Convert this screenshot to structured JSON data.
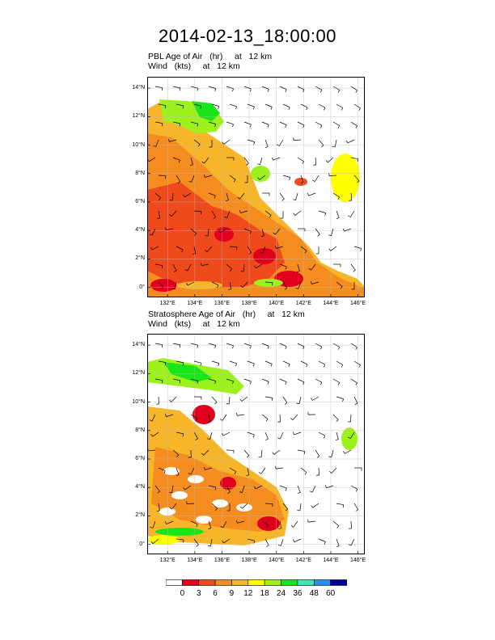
{
  "title": "2014-02-13_18:00:00",
  "panels": [
    {
      "id": "pbl",
      "line1": "PBL Age of Air   (hr)     at   12 km",
      "line2": "Wind   (kts)     at   12 km"
    },
    {
      "id": "strat",
      "line1": "Stratosphere Age of Air   (hr)     at   12 km",
      "line2": "Wind   (kts)     at   12 km"
    }
  ],
  "map": {
    "lat_ticks": [
      "0°",
      "2°N",
      "4°N",
      "6°N",
      "8°N",
      "10°N",
      "12°N",
      "14°N"
    ],
    "lon_ticks": [
      "132°E",
      "134°E",
      "136°E",
      "138°E",
      "140°E",
      "142°E",
      "144°E",
      "146°E"
    ],
    "lon_range": [
      130.5,
      146.5
    ],
    "lat_range": [
      -0.7,
      14.8
    ]
  },
  "colorbar": {
    "labels": [
      "0",
      "3",
      "6",
      "9",
      "12",
      "18",
      "24",
      "36",
      "48",
      "60"
    ],
    "colors": [
      "#ffffff",
      "#e0001e",
      "#ef4a1c",
      "#f58c1f",
      "#f7b52a",
      "#ffff00",
      "#9cf21a",
      "#19e619",
      "#3ce6b8",
      "#238ef0",
      "#000099"
    ]
  },
  "colors": {
    "red": "#e0001e",
    "orange_red": "#ef4a1c",
    "orange": "#f58c1f",
    "light_orange": "#f7b52a",
    "yellow": "#ffff00",
    "yellow_green": "#9cf21a",
    "green": "#19e619"
  }
}
